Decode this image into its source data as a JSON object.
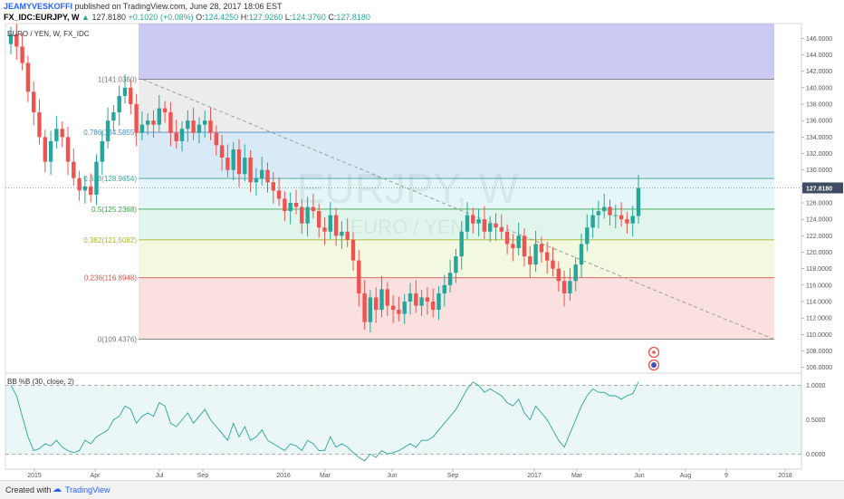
{
  "header": {
    "author": "JEAMYVESKOFFI",
    "published_text": "published on TradingView.com, June 28, 2017 18:06 EST",
    "symbol": "FX_IDC:EURJPY, W",
    "last": "127.8180",
    "change": "+0.1020 (+0.08%)",
    "o_label": "O:",
    "o_value": "124.4250",
    "h_label": "H:",
    "h_value": "127.9260",
    "l_label": "L:",
    "l_value": "124.3760",
    "c_label": "C:",
    "c_value": "127.8180"
  },
  "legend": "EURO / YEN, W, FX_IDC",
  "watermark": {
    "symbol": "EURJPY, W",
    "name": "EURO / YEN"
  },
  "indicator_label": "BB %B (30, close, 2)",
  "footer": {
    "created_with": "Created with",
    "brand": "TradingView"
  },
  "price_badge": "127.8180",
  "colors": {
    "up": "#26a69a",
    "down": "#ef5350",
    "accent": "#2962ff",
    "bb_line": "#26a69a"
  },
  "chart_data": [
    {
      "type": "candlestick",
      "x_tick_labels": [
        "2015",
        "Apr",
        "Jul",
        "Sep",
        "2016",
        "Mar",
        "Jun",
        "Sep",
        "2017",
        "Mar",
        "Jun",
        "Aug",
        "9",
        "2018"
      ],
      "y_ticks": [
        106,
        108,
        110,
        112,
        114,
        116,
        118,
        120,
        122,
        124,
        126,
        128,
        130,
        132,
        134,
        136,
        138,
        140,
        142,
        144,
        146
      ],
      "ylim": [
        105.3,
        147.8
      ],
      "closes": [
        146.5,
        145.0,
        143.0,
        139.5,
        137.0,
        134.0,
        131.0,
        133.5,
        135.0,
        134.0,
        131.0,
        129.0,
        127.5,
        128.0,
        127.0,
        131.0,
        133.5,
        136.0,
        137.0,
        139.0,
        140.0,
        138.0,
        134.5,
        135.5,
        136.0,
        135.5,
        137.5,
        137.0,
        134.5,
        133.5,
        135.0,
        136.0,
        134.5,
        135.5,
        136.0,
        134.5,
        133.0,
        131.5,
        130.0,
        132.5,
        129.5,
        131.5,
        128.5,
        129.0,
        130.0,
        128.5,
        127.5,
        126.5,
        125.0,
        126.0,
        125.5,
        123.5,
        125.5,
        125.0,
        123.0,
        122.5,
        124.5,
        122.0,
        122.5,
        121.5,
        119.0,
        115.0,
        111.5,
        114.5,
        113.0,
        115.5,
        113.5,
        113.0,
        112.5,
        114.0,
        115.0,
        113.5,
        114.5,
        114.0,
        113.0,
        115.0,
        116.0,
        117.5,
        119.5,
        122.5,
        124.5,
        123.5,
        124.0,
        122.5,
        123.5,
        123.0,
        122.5,
        121.0,
        120.5,
        122.0,
        119.5,
        118.5,
        121.0,
        120.0,
        119.0,
        118.0,
        116.5,
        115.0,
        116.5,
        118.5,
        121.0,
        123.0,
        124.5,
        125.0,
        125.5,
        124.5,
        124.5,
        124.0,
        123.5,
        124.4,
        127.8
      ],
      "fib_levels": [
        {
          "ratio": "1",
          "label": "1(141.0360)",
          "value": 141.036
        },
        {
          "ratio": "0.786",
          "label": "0.786(134.5855)",
          "value": 134.5855
        },
        {
          "ratio": "0.618",
          "label": "0.618(128.9654)",
          "value": 128.9654
        },
        {
          "ratio": "0.5",
          "label": "0.5(125.2368)",
          "value": 125.2368
        },
        {
          "ratio": "0.382",
          "label": "0.382(121.5082)",
          "value": 121.5082
        },
        {
          "ratio": "0.236",
          "label": "0.236(116.8948)",
          "value": 116.8948
        },
        {
          "ratio": "0",
          "label": "0(109.4376)",
          "value": 109.4376
        }
      ],
      "trendline": {
        "from": 141.0,
        "to": 109.4
      },
      "current_price": 127.818
    },
    {
      "type": "line",
      "title": "BB %B (30, close, 2)",
      "y_ticks": [
        0.0,
        0.5,
        1.0
      ],
      "y_tick_labels": [
        "0.0000",
        "0.5000",
        "1.0000"
      ],
      "ylim": [
        -0.22,
        1.18
      ],
      "band": [
        0.0,
        1.0
      ],
      "values": [
        1.0,
        0.85,
        0.55,
        0.25,
        0.05,
        0.08,
        0.15,
        0.12,
        0.2,
        0.1,
        0.05,
        0.02,
        0.05,
        0.2,
        0.15,
        0.25,
        0.3,
        0.35,
        0.5,
        0.55,
        0.7,
        0.65,
        0.45,
        0.55,
        0.6,
        0.55,
        0.75,
        0.7,
        0.45,
        0.4,
        0.5,
        0.6,
        0.45,
        0.55,
        0.65,
        0.5,
        0.4,
        0.3,
        0.2,
        0.45,
        0.25,
        0.4,
        0.2,
        0.25,
        0.35,
        0.2,
        0.15,
        0.1,
        0.05,
        0.15,
        0.12,
        0.05,
        0.2,
        0.15,
        0.05,
        0.05,
        0.25,
        0.1,
        0.15,
        0.1,
        0.02,
        -0.05,
        -0.1,
        0.0,
        -0.05,
        0.05,
        0.0,
        0.02,
        0.05,
        0.1,
        0.15,
        0.1,
        0.2,
        0.2,
        0.25,
        0.35,
        0.45,
        0.55,
        0.65,
        0.8,
        0.95,
        1.05,
        1.0,
        0.9,
        0.95,
        0.9,
        0.85,
        0.75,
        0.7,
        0.8,
        0.6,
        0.5,
        0.7,
        0.6,
        0.5,
        0.35,
        0.2,
        0.1,
        0.3,
        0.5,
        0.7,
        0.85,
        0.95,
        0.9,
        0.9,
        0.85,
        0.85,
        0.8,
        0.85,
        0.88,
        1.05
      ]
    }
  ]
}
